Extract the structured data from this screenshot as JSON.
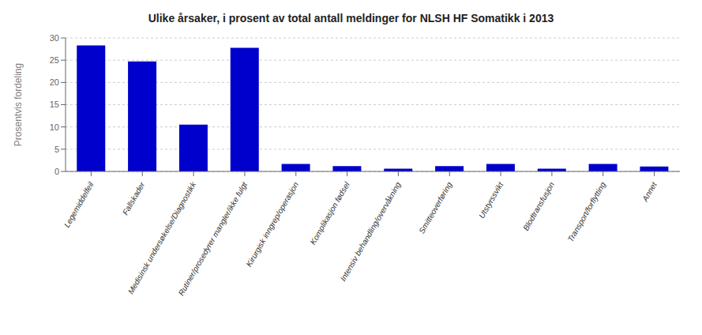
{
  "chart_data": {
    "type": "bar",
    "title": "Ulike årsaker,  i prosent av total antall meldinger for NLSH HF Somatikk i  2013",
    "ylabel": "Prosentvis fordeling",
    "categories": [
      "Legemiddelfeil",
      "Fallskader",
      "Medisinsk undersøkelse/Diagnostikk",
      "Rutiner/prosedyrer mangler/ikke fulgt",
      "Kirurgisk inngrep/operasjon",
      "Komplikasjon fødsel",
      "Intensiv behandling/overvåkning",
      "Smitteoverføring",
      "Utstyrssvikt",
      "Blodtransfusjon",
      "Transport/forflytting",
      "Annet"
    ],
    "values": [
      28.3,
      24.7,
      10.5,
      27.8,
      1.7,
      1.2,
      0.6,
      1.2,
      1.7,
      0.6,
      1.7,
      1.1
    ],
    "color": "#0000cc",
    "ylim": [
      0,
      30
    ],
    "yticks": [
      0,
      5,
      10,
      15,
      20,
      25,
      30
    ],
    "grid": true
  }
}
